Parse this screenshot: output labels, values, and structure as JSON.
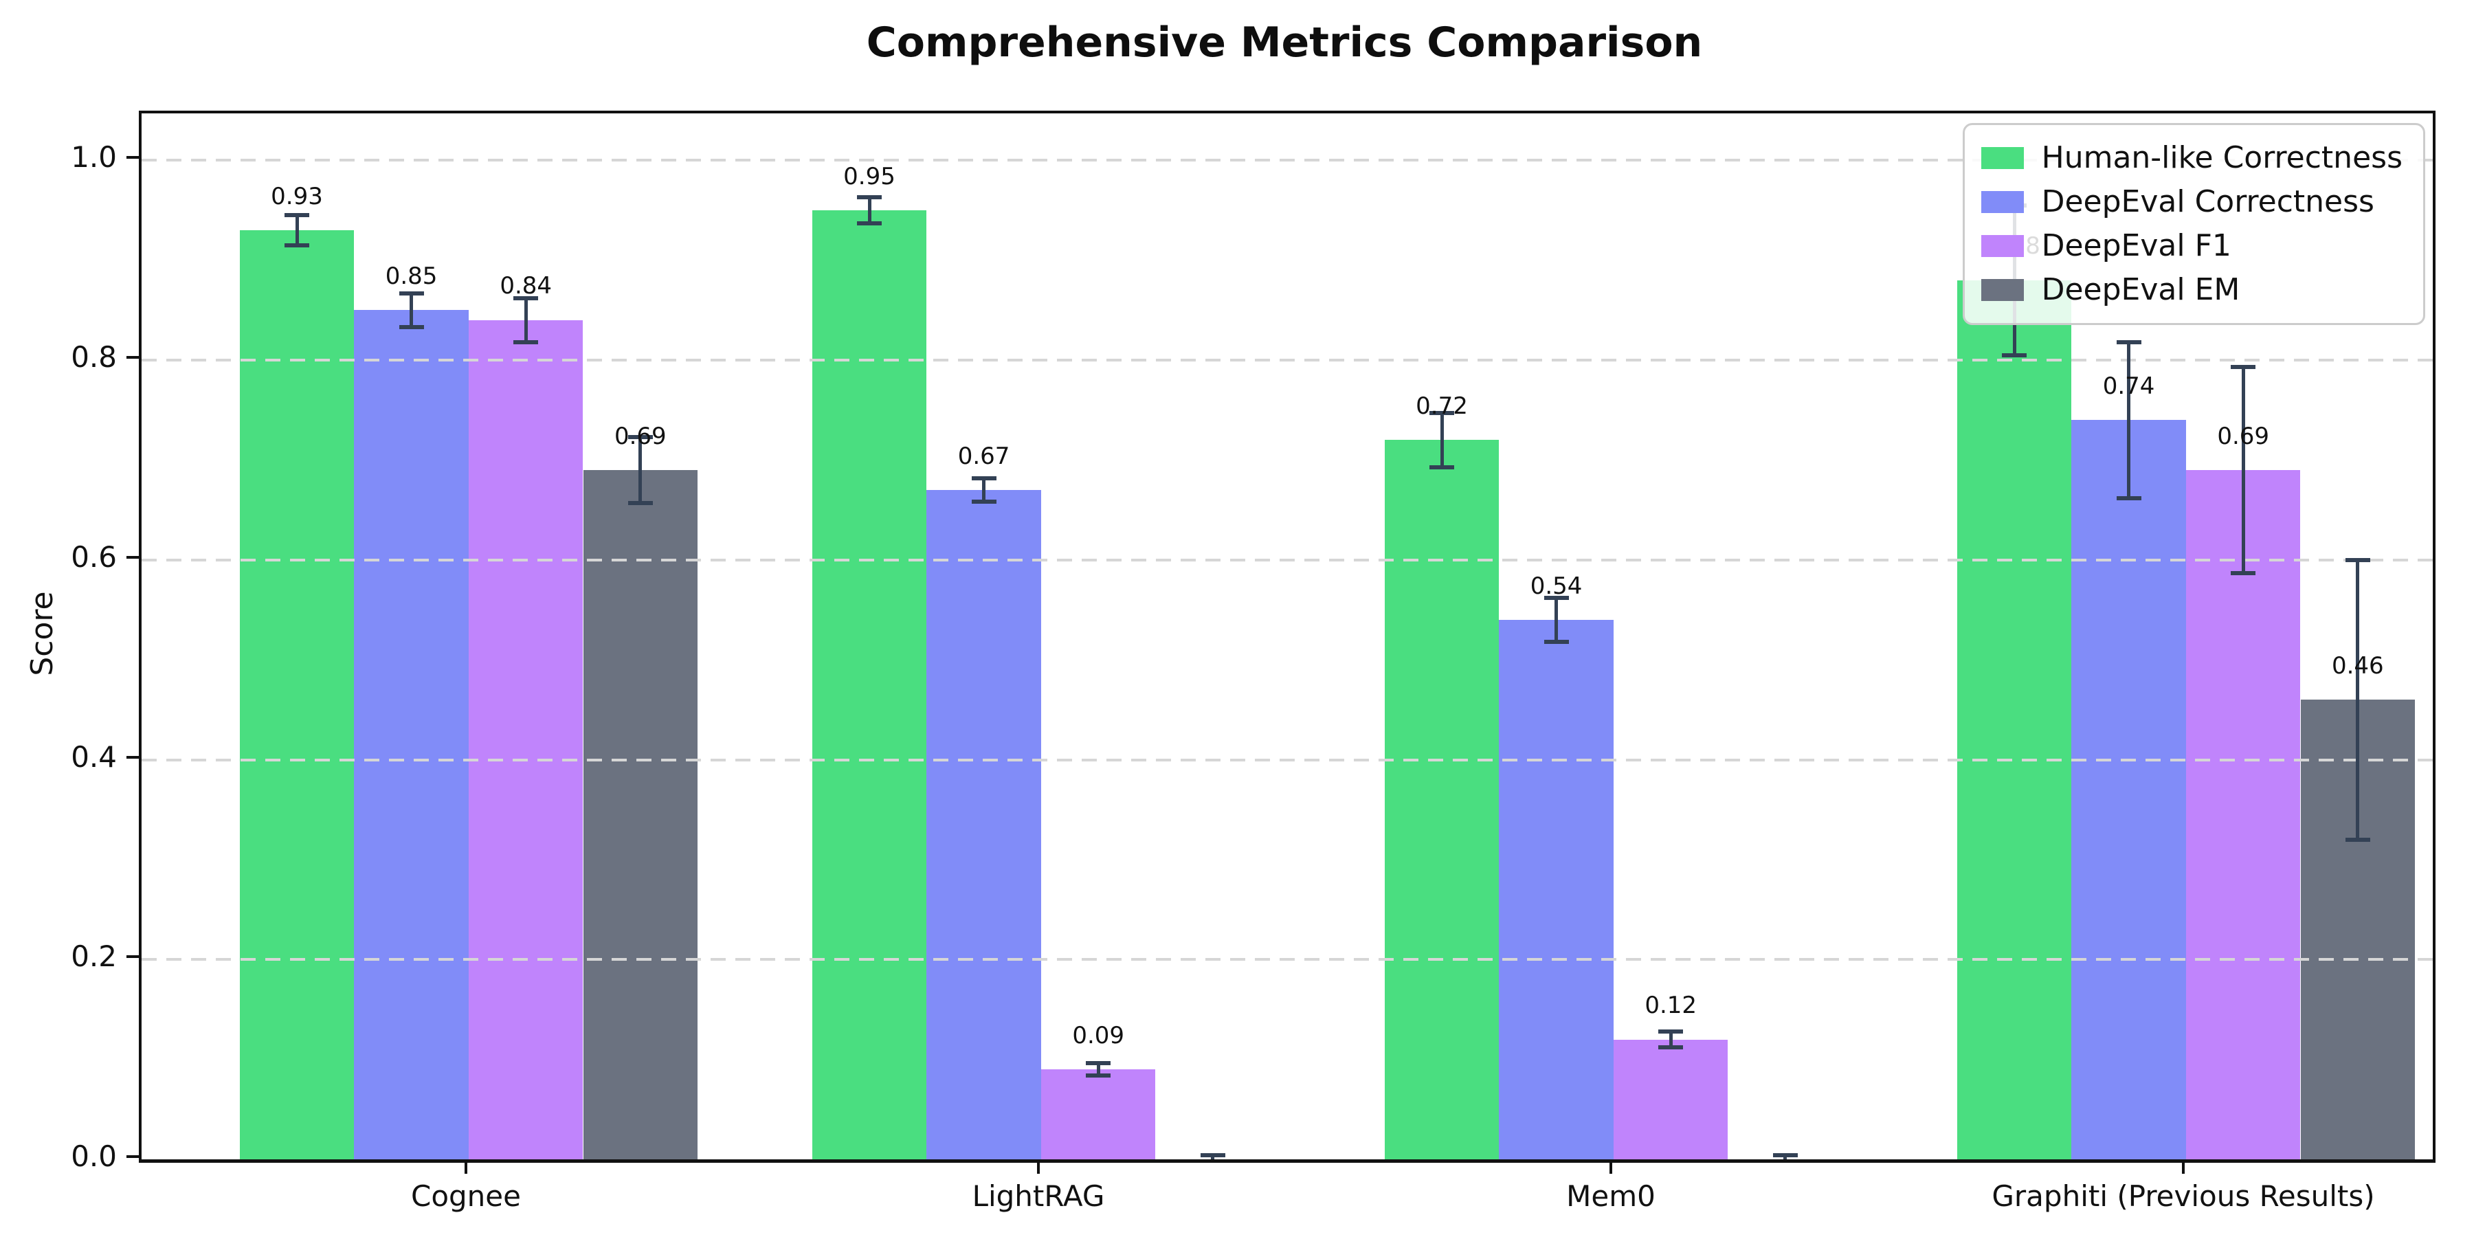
{
  "chart_data": {
    "type": "bar",
    "title": "Comprehensive Metrics Comparison",
    "ylabel": "Score",
    "categories": [
      "Cognee",
      "LightRAG",
      "Mem0",
      "Graphiti (Previous Results)"
    ],
    "yticks": [
      "0.0",
      "0.2",
      "0.4",
      "0.6",
      "0.8",
      "1.0"
    ],
    "ylim": [
      0,
      1.047
    ],
    "grid": {
      "axis": "y",
      "style": "dashed",
      "color": "#d6d6d6",
      "above_bars": true
    },
    "legend": {
      "position": "upper right"
    },
    "errorbar_color": "#334155",
    "series": [
      {
        "name": "Human-like Correctness",
        "color": "#4ade80",
        "values": [
          0.93,
          0.95,
          0.72,
          0.88
        ],
        "errors": [
          0.015,
          0.013,
          0.027,
          0.075
        ],
        "bar_labels": [
          "0.93",
          "0.95",
          "0.72",
          "0.88"
        ]
      },
      {
        "name": "DeepEval Correctness",
        "color": "#818cf8",
        "values": [
          0.85,
          0.67,
          0.54,
          0.74
        ],
        "errors": [
          0.017,
          0.012,
          0.022,
          0.078
        ],
        "bar_labels": [
          "0.85",
          "0.67",
          "0.54",
          "0.74"
        ]
      },
      {
        "name": "DeepEval F1",
        "color": "#c084fc",
        "values": [
          0.84,
          0.09,
          0.12,
          0.69
        ],
        "errors": [
          0.022,
          0.006,
          0.008,
          0.103
        ],
        "bar_labels": [
          "0.84",
          "0.09",
          "0.12",
          "0.69"
        ]
      },
      {
        "name": "DeepEval EM",
        "color": "#6b7280",
        "values": [
          0.69,
          0.0,
          0.0,
          0.46
        ],
        "errors": [
          0.033,
          0.004,
          0.004,
          0.14
        ],
        "bar_labels": [
          "0.69",
          "",
          "",
          "0.46"
        ]
      }
    ]
  }
}
